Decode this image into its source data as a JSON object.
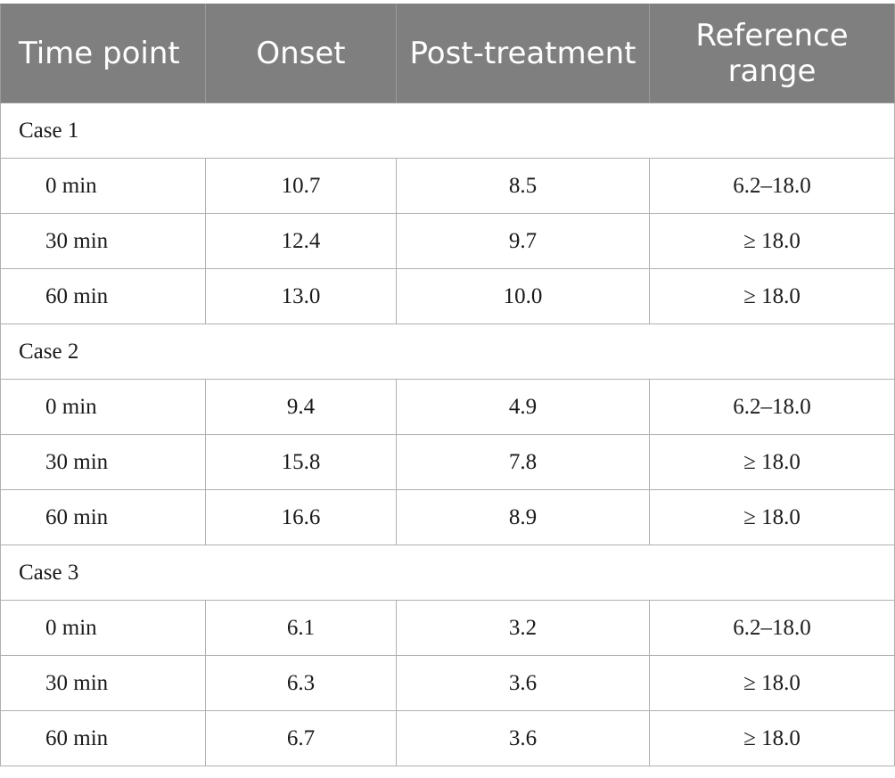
{
  "table": {
    "headers": [
      "Time point",
      "Onset",
      "Post-treatment",
      "Reference range"
    ],
    "groups": [
      {
        "label": "Case 1",
        "rows": [
          {
            "time": "0 min",
            "onset": "10.7",
            "post": "8.5",
            "ref": "6.2–18.0"
          },
          {
            "time": "30 min",
            "onset": "12.4",
            "post": "9.7",
            "ref": "≥ 18.0"
          },
          {
            "time": "60 min",
            "onset": "13.0",
            "post": "10.0",
            "ref": "≥ 18.0"
          }
        ]
      },
      {
        "label": "Case 2",
        "rows": [
          {
            "time": "0 min",
            "onset": "9.4",
            "post": "4.9",
            "ref": "6.2–18.0"
          },
          {
            "time": "30 min",
            "onset": "15.8",
            "post": "7.8",
            "ref": "≥ 18.0"
          },
          {
            "time": "60 min",
            "onset": "16.6",
            "post": "8.9",
            "ref": "≥ 18.0"
          }
        ]
      },
      {
        "label": "Case 3",
        "rows": [
          {
            "time": "0 min",
            "onset": "6.1",
            "post": "3.2",
            "ref": "6.2–18.0"
          },
          {
            "time": "30 min",
            "onset": "6.3",
            "post": "3.6",
            "ref": "≥ 18.0"
          },
          {
            "time": "60 min",
            "onset": "6.7",
            "post": "3.6",
            "ref": "≥ 18.0"
          }
        ]
      }
    ]
  }
}
